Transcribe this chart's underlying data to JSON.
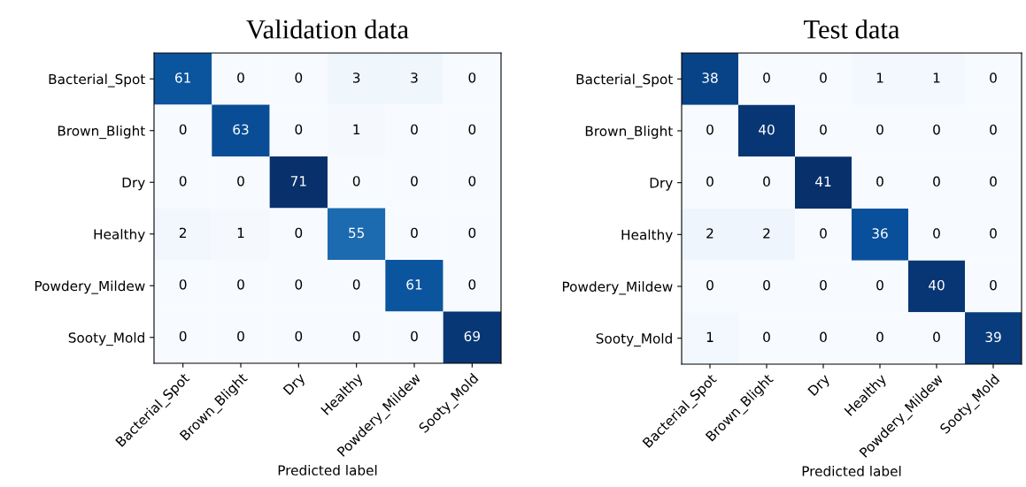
{
  "chart_data": [
    {
      "type": "heatmap",
      "title": "Validation data",
      "xlabel": "Predicted label",
      "categories": [
        "Bacterial_Spot",
        "Brown_Blight",
        "Dry",
        "Healthy",
        "Powdery_Mildew",
        "Sooty_Mold"
      ],
      "y_categories": [
        "Bacterial_Spot",
        "Brown_Blight",
        "Dry",
        "Healthy",
        "Powdery_Mildew",
        "Sooty_Mold"
      ],
      "cells": [
        [
          61,
          0,
          0,
          3,
          3,
          0
        ],
        [
          0,
          63,
          0,
          1,
          0,
          0
        ],
        [
          0,
          0,
          71,
          0,
          0,
          0
        ],
        [
          2,
          1,
          0,
          55,
          0,
          0
        ],
        [
          0,
          0,
          0,
          0,
          61,
          0
        ],
        [
          0,
          0,
          0,
          0,
          0,
          69
        ]
      ],
      "data_labels": true
    },
    {
      "type": "heatmap",
      "title": "Test data",
      "xlabel": "Predicted label",
      "categories": [
        "Bacterial_Spot",
        "Brown_Blight",
        "Dry",
        "Healthy",
        "Powdery_Mildew",
        "Sooty_Mold"
      ],
      "y_categories": [
        "Bacterial_Spot",
        "Brown_Blight",
        "Dry",
        "Healthy",
        "Powdery_Mildew",
        "Sooty_Mold"
      ],
      "cells": [
        [
          38,
          0,
          0,
          1,
          1,
          0
        ],
        [
          0,
          40,
          0,
          0,
          0,
          0
        ],
        [
          0,
          0,
          41,
          0,
          0,
          0
        ],
        [
          2,
          2,
          0,
          36,
          0,
          0
        ],
        [
          0,
          0,
          0,
          0,
          40,
          0
        ],
        [
          1,
          0,
          0,
          0,
          0,
          39
        ]
      ],
      "data_labels": true
    }
  ]
}
